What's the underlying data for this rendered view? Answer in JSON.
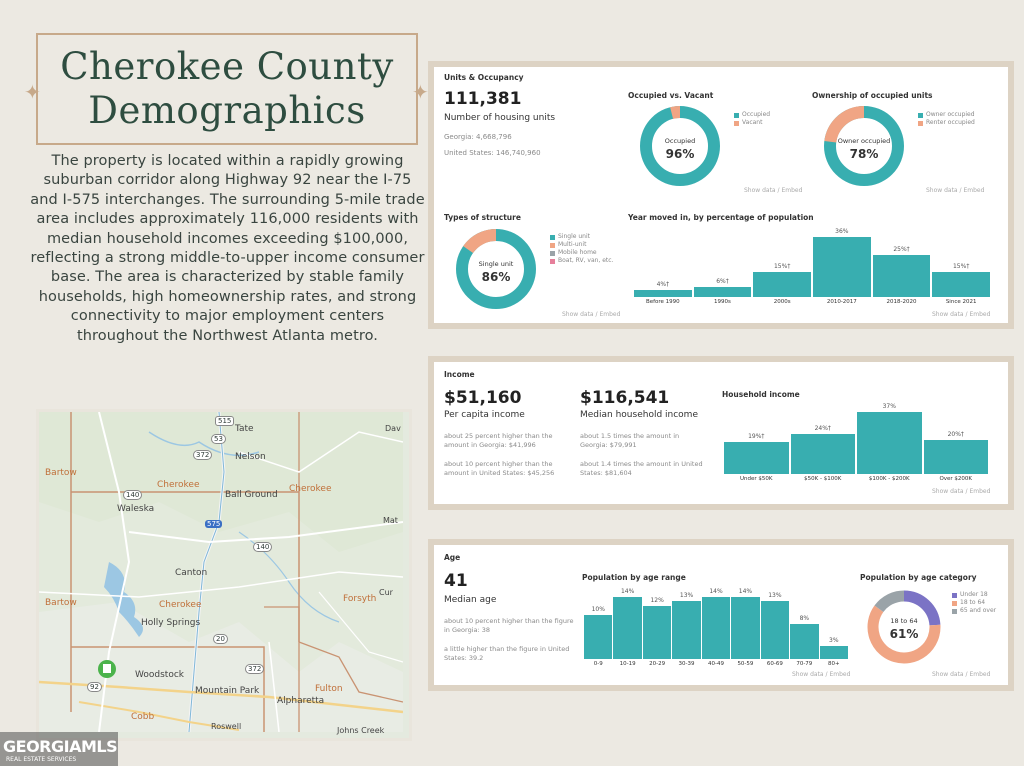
{
  "title": {
    "line1": "Cherokee County",
    "line2": "Demographics"
  },
  "description": "The property is located within a rapidly growing suburban corridor along Highway 92 near the I-75 and I-575 interchanges. The surrounding 5-mile trade area includes approximately 116,000 residents with median household incomes exceeding $100,000, reflecting a strong middle-to-upper income consumer base. The area is characterized by stable family households, high homeownership rates, and strong connectivity to major employment centers throughout the Northwest Atlanta metro.",
  "map": {
    "labels": [
      "Tate",
      "Nelson",
      "Cherokee",
      "Cherokee",
      "Ball Ground",
      "Waleska",
      "Canton",
      "Cherokee",
      "Holly Springs",
      "Woodstock",
      "Mountain Park",
      "Alpharetta",
      "Fulton",
      "Cobb",
      "Forsyth",
      "Bartow",
      "Bartow",
      "Johns Creek",
      "Roswell",
      "Mat",
      "Cur",
      "Dav"
    ],
    "route_labels": [
      "515",
      "53",
      "372",
      "140",
      "575",
      "140",
      "20",
      "372",
      "92"
    ]
  },
  "watermark": {
    "brand": "GEORGIAMLS",
    "tagline": "REAL ESTATE SERVICES"
  },
  "colors": {
    "teal": "#38aeb0",
    "salmon": "#f0a584",
    "gray": "#9aa3a8",
    "pink": "#e67f9b",
    "purple": "#7b73c5",
    "panel_border": "#ddd3c4",
    "title_green": "#2e4d40"
  },
  "units": {
    "section_label": "Units & Occupancy",
    "total": "111,381",
    "total_label": "Number of housing units",
    "georgia": "Georgia: 4,668,796",
    "us": "United States: 146,740,960",
    "occupied_vs_vacant": {
      "title": "Occupied vs. Vacant",
      "center_label": "Occupied",
      "center_value": "96%",
      "value": 0.96,
      "legend": [
        "Occupied",
        "Vacant"
      ]
    },
    "ownership": {
      "title": "Ownership of occupied units",
      "center_label": "Owner occupied",
      "center_value": "78%",
      "value": 0.78,
      "legend": [
        "Owner occupied",
        "Renter occupied"
      ]
    },
    "structure": {
      "title": "Types of structure",
      "center_label": "Single unit",
      "center_value": "86%",
      "value": 0.86,
      "legend": [
        "Single unit",
        "Multi-unit",
        "Mobile home",
        "Boat, RV, van, etc."
      ]
    },
    "show_data": "Show data / Embed"
  },
  "chart_data": [
    {
      "type": "bar",
      "title": "Year moved in, by percentage of population",
      "categories": [
        "Before 1990",
        "1990s",
        "2000s",
        "2010-2017",
        "2018-2020",
        "Since 2021"
      ],
      "values": [
        4,
        6,
        15,
        36,
        25,
        15
      ],
      "value_labels": [
        "4%†",
        "6%†",
        "15%†",
        "36%",
        "25%†",
        "15%†"
      ],
      "ylim": [
        0,
        36
      ]
    },
    {
      "type": "bar",
      "title": "Household income",
      "categories": [
        "Under $50K",
        "$50K - $100K",
        "$100K - $200K",
        "Over $200K"
      ],
      "values": [
        19,
        24,
        37,
        20
      ],
      "value_labels": [
        "19%†",
        "24%†",
        "37%",
        "20%†"
      ],
      "ylim": [
        0,
        37
      ]
    },
    {
      "type": "bar",
      "title": "Population by age range",
      "categories": [
        "0-9",
        "10-19",
        "20-29",
        "30-39",
        "40-49",
        "50-59",
        "60-69",
        "70-79",
        "80+"
      ],
      "values": [
        10,
        14,
        12,
        13,
        14,
        14,
        13,
        8,
        3
      ],
      "value_labels": [
        "10%",
        "14%",
        "12%",
        "13%",
        "14%",
        "14%",
        "13%",
        "8%",
        "3%"
      ],
      "ylim": [
        0,
        14
      ]
    },
    {
      "type": "pie",
      "title": "Population by age category",
      "categories": [
        "Under 18",
        "18 to 64",
        "65 and over"
      ],
      "values": [
        24,
        61,
        15
      ],
      "center_label": "18 to 64",
      "center_value": "61%"
    }
  ],
  "income": {
    "section_label": "Income",
    "per_capita": "$51,160",
    "per_capita_label": "Per capita income",
    "per_capita_note1": "about 25 percent higher than the amount in Georgia: $41,996",
    "per_capita_note2": "about 10 percent higher than the amount in United States: $45,256",
    "median": "$116,541",
    "median_label": "Median household income",
    "median_note1": "about 1.5 times the amount in Georgia: $79,991",
    "median_note2": "about 1.4 times the amount in United States: $81,604",
    "show_data": "Show data / Embed"
  },
  "age": {
    "section_label": "Age",
    "median": "41",
    "median_label": "Median age",
    "note1": "about 10 percent higher than the figure in Georgia: 38",
    "note2": "a little higher than the figure in United States: 39.2",
    "show_data": "Show data / Embed"
  }
}
